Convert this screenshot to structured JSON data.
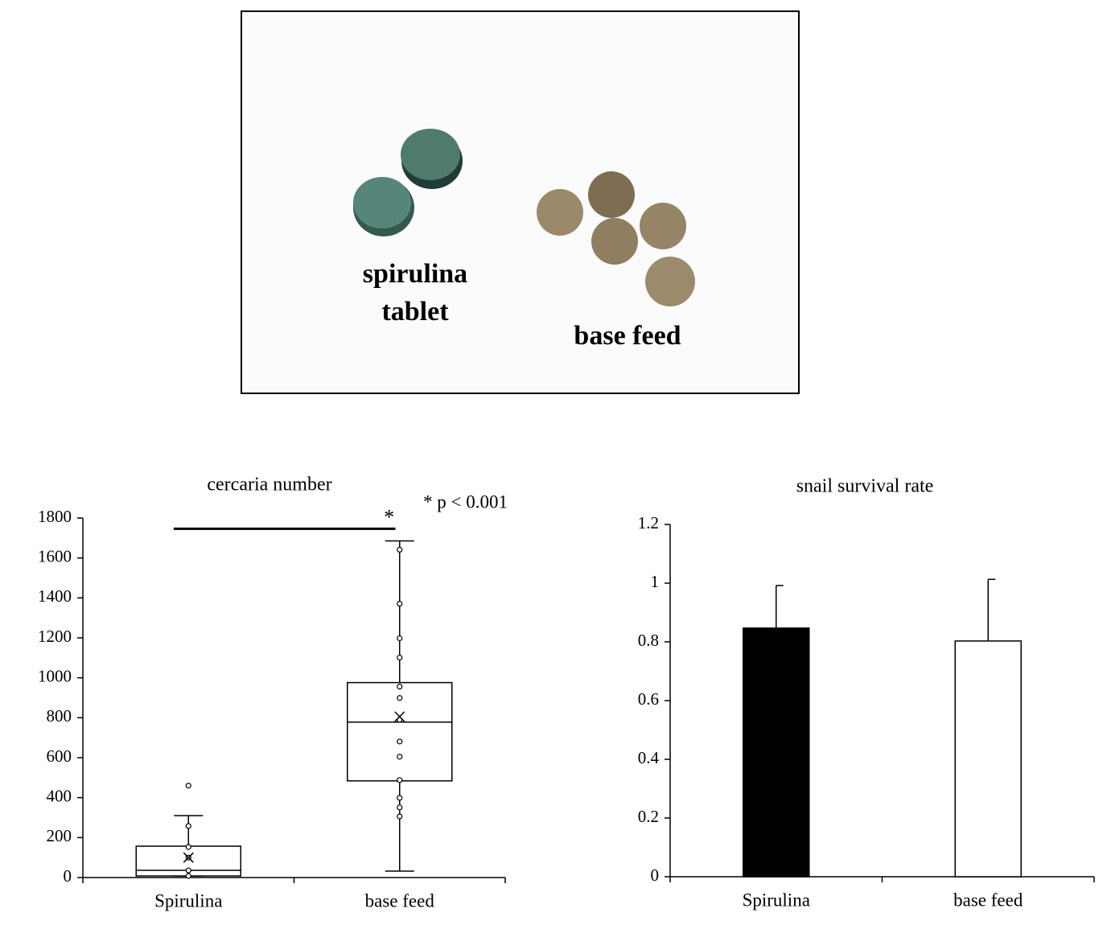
{
  "photo": {
    "labels": [
      "spirulina",
      "tablet",
      "base feed"
    ]
  },
  "chart_data": [
    {
      "type": "box",
      "title": "cercaria number",
      "annotation": "* p < 0.001",
      "categories": [
        "Spirulina",
        "base feed"
      ],
      "ylim": [
        0,
        1800
      ],
      "yticks": [
        0,
        200,
        400,
        600,
        800,
        1000,
        1200,
        1400,
        1600,
        1800
      ],
      "significance": {
        "y": 1746,
        "label": "*"
      },
      "series": [
        {
          "min": 8,
          "q1": 8,
          "median": 36,
          "q3": 157,
          "max": 310,
          "mean": 100,
          "points": [
            8,
            36,
            100,
            153,
            258,
            460
          ]
        },
        {
          "min": 32,
          "q1": 484,
          "median": 778,
          "q3": 976,
          "max": 1685,
          "mean": 806,
          "points": [
            306,
            351,
            399,
            488,
            605,
            681,
            790,
            899,
            956,
            1101,
            1198,
            1371,
            1641
          ]
        }
      ]
    },
    {
      "type": "bar",
      "title": "snail survival rate",
      "categories": [
        "Spirulina",
        "base feed"
      ],
      "values": [
        0.847,
        0.803
      ],
      "errors": [
        0.145,
        0.21
      ],
      "colors": [
        "#000000",
        "#ffffff"
      ],
      "ylim": [
        0,
        1.2
      ],
      "yticks": [
        0,
        0.2,
        0.4,
        0.6,
        0.8,
        1,
        1.2
      ]
    }
  ]
}
